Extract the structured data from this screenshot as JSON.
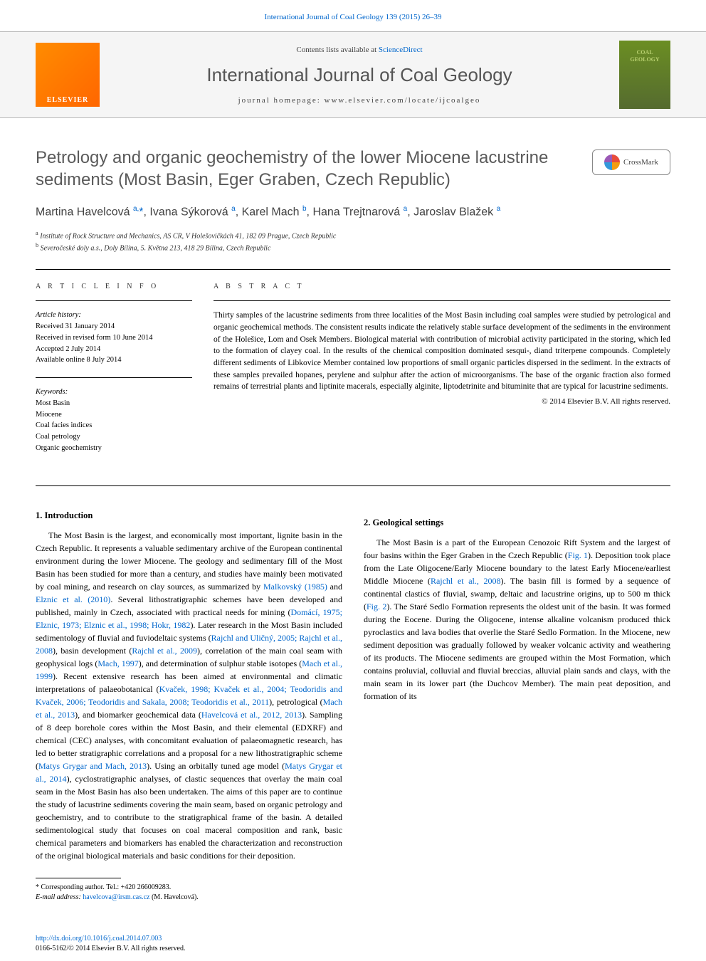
{
  "top_citation": "International Journal of Coal Geology 139 (2015) 26–39",
  "header": {
    "elsevier_label": "ELSEVIER",
    "contents_prefix": "Contents lists available at ",
    "contents_link": "ScienceDirect",
    "journal_name": "International Journal of Coal Geology",
    "homepage_prefix": "journal homepage: ",
    "homepage_url": "www.elsevier.com/locate/ijcoalgeo",
    "cover_line1": "COAL",
    "cover_line2": "GEOLOGY"
  },
  "title": "Petrology and organic geochemistry of the lower Miocene lacustrine sediments (Most Basin, Eger Graben, Czech Republic)",
  "crossmark_label": "CrossMark",
  "authors_html": "Martina Havelcová <sup>a,</sup><span class='star'>*</span>, Ivana Sýkorová <sup>a</sup>, Karel Mach <sup>b</sup>, Hana Trejtnarová <sup>a</sup>, Jaroslav Blažek <sup>a</sup>",
  "affiliations": {
    "a": "Institute of Rock Structure and Mechanics, AS CR, V Holešovičkách 41, 182 09 Prague, Czech Republic",
    "b": "Severočeské doly a.s., Doly Bílina, 5. Května 213, 418 29 Bílina, Czech Republic"
  },
  "article_info": {
    "heading": "A R T I C L E   I N F O",
    "history_label": "Article history:",
    "received": "Received 31 January 2014",
    "revised": "Received in revised form 10 June 2014",
    "accepted": "Accepted 2 July 2014",
    "online": "Available online 8 July 2014",
    "keywords_label": "Keywords:",
    "keywords": [
      "Most Basin",
      "Miocene",
      "Coal facies indices",
      "Coal petrology",
      "Organic geochemistry"
    ]
  },
  "abstract": {
    "heading": "A B S T R A C T",
    "text": "Thirty samples of the lacustrine sediments from three localities of the Most Basin including coal samples were studied by petrological and organic geochemical methods. The consistent results indicate the relatively stable surface development of the sediments in the environment of the Holešice, Lom and Osek Members. Biological material with contribution of microbial activity participated in the storing, which led to the formation of clayey coal. In the results of the chemical composition dominated sesqui-, diand triterpene compounds. Completely different sediments of Libkovice Member contained low proportions of small organic particles dispersed in the sediment. In the extracts of these samples prevailed hopanes, perylene and sulphur after the action of microorganisms. The base of the organic fraction also formed remains of terrestrial plants and liptinite macerals, especially alginite, liptodetrinite and bituminite that are typical for lacustrine sediments.",
    "copyright": "© 2014 Elsevier B.V. All rights reserved."
  },
  "body": {
    "section1_heading": "1. Introduction",
    "section1_p1_pre": "The Most Basin is the largest, and economically most important, lignite basin in the Czech Republic. It represents a valuable sedimentary archive of the European continental environment during the lower Miocene. The geology and sedimentary fill of the Most Basin has been studied for more than a century, and studies have mainly been motivated by coal mining, and research on clay sources, as summarized by ",
    "ref_malkovsky": "Malkovský (1985)",
    "section1_p1_mid1": " and ",
    "ref_elznic": "Elznic et al. (2010)",
    "section1_p1_mid2": ". Several lithostratigraphic schemes have been developed and published, mainly in Czech, associated with practical needs for mining (",
    "ref_domaci": "Domácí, 1975; Elznic, 1973; Elznic et al., 1998; Hokr, 1982",
    "section1_p1_mid3": "). Later research in the Most Basin included sedimentology of fluvial and fuviodeltaic systems (",
    "ref_rajchl1": "Rajchl and Uličný, 2005; Rajchl et al., 2008",
    "section1_p1_mid4": "), basin development (",
    "ref_rajchl2": "Rajchl et al., 2009",
    "section1_p1_mid5": "), correlation of the main coal seam with geophysical logs (",
    "ref_mach1": "Mach, 1997",
    "section1_p1_mid6": "), and determination of sulphur stable isotopes (",
    "ref_mach2": "Mach et al., 1999",
    "section1_p1_mid7": "). Recent extensive research has been aimed at environmental and climatic interpretations of palaeobotanical (",
    "ref_kvacek": "Kvaček, 1998; Kvaček et al., 2004; Teodoridis and Kvaček, 2006; Teodoridis and Sakala, 2008; Teodoridis et al., 2011",
    "section1_p1_mid8": "), petrological (",
    "ref_mach3": "Mach et al., 2013",
    "section1_p1_mid9": "), and biomarker geochemical data (",
    "ref_havel": "Havelcová et al., 2012, 2013",
    "section1_p1_mid10": "). Sampling of 8 deep borehole cores within the Most Basin, and their elemental (EDXRF) and chemical (CEC) analyses, with concomitant evaluation of palaeomagnetic research, has led to better stratigraphic correlations and a proposal for a new lithostratigraphic scheme (",
    "ref_matys1": "Matys Grygar and Mach, 2013",
    "section1_p1_end": "). Using an",
    "col2_start": "orbitally tuned age model (",
    "ref_matys2": "Matys Grygar et al., 2014",
    "col2_mid": "), cyclostratigraphic analyses, of clastic sequences that overlay the main coal seam in the Most Basin has also been undertaken. The aims of this paper are to continue the study of lacustrine sediments covering the main seam, based on organic petrology and geochemistry, and to contribute to the stratigraphical frame of the basin. A detailed sedimentological study that focuses on coal maceral composition and rank, basic chemical parameters and biomarkers has enabled the characterization and reconstruction of the original biological materials and basic conditions for their deposition.",
    "section2_heading": "2. Geological settings",
    "section2_p1_pre": "The Most Basin is a part of the European Cenozoic Rift System and the largest of four basins within the Eger Graben in the Czech Republic (",
    "ref_fig1": "Fig. 1",
    "section2_p1_mid1": "). Deposition took place from the Late Oligocene/Early Miocene boundary to the latest Early Miocene/earliest Middle Miocene (",
    "ref_rajchl3": "Rajchl et al., 2008",
    "section2_p1_mid2": "). The basin fill is formed by a sequence of continental clastics of fluvial, swamp, deltaic and lacustrine origins, up to 500 m thick (",
    "ref_fig2": "Fig. 2",
    "section2_p1_end": "). The Staré Sedlo Formation represents the oldest unit of the basin. It was formed during the Eocene. During the Oligocene, intense alkaline volcanism produced thick pyroclastics and lava bodies that overlie the Staré Sedlo Formation. In the Miocene, new sediment deposition was gradually followed by weaker volcanic activity and weathering of its products. The Miocene sediments are grouped within the Most Formation, which contains proluvial, colluvial and fluvial breccias, alluvial plain sands and clays, with the main seam in its lower part (the Duchcov Member). The main peat deposition, and formation of its"
  },
  "footnote": {
    "corr_label": "Corresponding author. Tel.: +420 266009283.",
    "email_label": "E-mail address: ",
    "email": "havelcova@irsm.cas.cz",
    "email_suffix": " (M. Havelcová)."
  },
  "footer": {
    "doi": "http://dx.doi.org/10.1016/j.coal.2014.07.003",
    "issn_line": "0166-5162/© 2014 Elsevier B.V. All rights reserved."
  },
  "colors": {
    "link": "#0066cc",
    "text_gray": "#5a5a5a",
    "elsevier_orange": "#ff7700",
    "cover_green": "#6b8e23"
  }
}
